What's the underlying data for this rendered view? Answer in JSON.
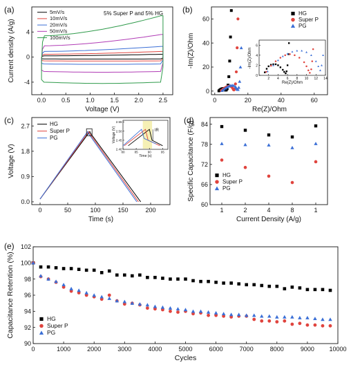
{
  "chart_data": [
    {
      "panel": "(a)",
      "type": "line",
      "title": "5% Super P and 5% HG",
      "xlabel": "Voltage (V)",
      "ylabel": "Current density (A/g)",
      "xlim": [
        -0.2,
        2.7
      ],
      "ylim": [
        -6,
        8
      ],
      "xticks": [
        "0.0",
        "0.5",
        "1.0",
        "1.5",
        "2.0",
        "2.5"
      ],
      "yticks": [
        "-4",
        "0",
        "4"
      ],
      "ytick_values": [
        -4,
        0,
        4
      ],
      "xtick_values": [
        0,
        0.5,
        1.0,
        1.5,
        2.0,
        2.5
      ],
      "legend_position": "top-left",
      "series": [
        {
          "name": "5mV/s",
          "color": "#000000",
          "upper": 0.2,
          "lower": -0.3,
          "upper_end": 0.45
        },
        {
          "name": "10mV/s",
          "color": "#e0443e",
          "upper": 0.45,
          "lower": -0.6,
          "upper_end": 0.9
        },
        {
          "name": "20mV/s",
          "color": "#3b6fd6",
          "upper": 0.9,
          "lower": -1.1,
          "upper_end": 1.7
        },
        {
          "name": "50mV/s",
          "color": "#b03bb5",
          "upper": 1.8,
          "lower": -2.3,
          "upper_end": 3.6
        },
        {
          "name": "100mV/s",
          "color": "#2e9a4a",
          "upper": 3.4,
          "lower": -4.0,
          "upper_end": 6.6
        }
      ]
    },
    {
      "panel": "(b)",
      "type": "scatter",
      "xlabel": "Re(Z)/Ohm",
      "ylabel": "-Im(Z)/Ohm",
      "xlim": [
        -2,
        68
      ],
      "ylim": [
        -3,
        70
      ],
      "xticks": [
        "0",
        "20",
        "40",
        "60"
      ],
      "xtick_values": [
        0,
        20,
        40,
        60
      ],
      "yticks": [
        "0",
        "20",
        "40",
        "60"
      ],
      "ytick_values": [
        0,
        20,
        40,
        60
      ],
      "legend_position": "top-right",
      "series": [
        {
          "name": "HG",
          "color": "#000000",
          "marker": "square",
          "x": [
            2.5,
            3,
            3.5,
            4,
            4.5,
            5,
            5.5,
            6,
            6.3,
            6.6,
            7,
            7.5,
            8,
            8.5,
            9,
            9.5,
            10
          ],
          "y": [
            0.2,
            0.8,
            1.3,
            1.7,
            2.0,
            2.1,
            2.0,
            1.6,
            1.1,
            0.8,
            1.0,
            2.0,
            5.0,
            12,
            25,
            45,
            67
          ]
        },
        {
          "name": "Super P",
          "color": "#e0443e",
          "marker": "circle",
          "x": [
            4,
            5,
            6,
            7,
            8,
            9,
            10,
            10.5,
            11,
            11.3,
            11.6,
            12,
            12.5,
            13,
            13.5,
            14
          ],
          "y": [
            0.5,
            1.6,
            2.6,
            3.4,
            4.0,
            4.2,
            3.8,
            3.0,
            2.0,
            1.2,
            1.0,
            1.8,
            6,
            16,
            36,
            60
          ]
        },
        {
          "name": "PG",
          "color": "#3b6fd6",
          "marker": "triangle",
          "x": [
            4.5,
            5.5,
            6.5,
            7.5,
            8.5,
            9.5,
            10.5,
            11.5,
            12.5,
            13,
            13.5,
            14,
            14.5,
            15,
            15.5,
            16
          ],
          "y": [
            0.5,
            1.5,
            2.5,
            3.4,
            4.1,
            4.6,
            4.8,
            4.6,
            3.6,
            2.5,
            1.5,
            1.3,
            3.0,
            8,
            20,
            36
          ]
        }
      ],
      "inset": {
        "xlabel": "Re(Z)/Ohm",
        "ylabel": "-Im(Z)/Ohm",
        "xlim": [
          0,
          14
        ],
        "ylim": [
          0,
          7
        ],
        "xticks": [
          "2",
          "4",
          "6",
          "8",
          "10",
          "12",
          "14"
        ],
        "xtick_values": [
          2,
          4,
          6,
          8,
          10,
          12,
          14
        ],
        "yticks": [
          "0",
          "2",
          "4",
          "6"
        ],
        "ytick_values": [
          0,
          2,
          4,
          6
        ],
        "series": [
          {
            "name": "HG",
            "color": "#000000",
            "marker": "square",
            "x": [
              1.2,
              1.6,
              2.0,
              2.5,
              3.0,
              3.5,
              4.0,
              4.5,
              5.0,
              5.3,
              5.6,
              5.8,
              6.0,
              6.2,
              6.3
            ],
            "y": [
              0.6,
              1.3,
              1.8,
              2.1,
              2.2,
              2.2,
              2.0,
              1.6,
              1.1,
              0.7,
              0.4,
              0.8,
              2.0,
              4.2,
              6.4
            ]
          },
          {
            "name": "Super P",
            "color": "#e0443e",
            "marker": "circle",
            "x": [
              1.5,
              2.5,
              3.5,
              4.5,
              5.5,
              6.5,
              7.5,
              8.5,
              9.5,
              10.0,
              10.4,
              10.7,
              11.0,
              11.2,
              11.4
            ],
            "y": [
              0.7,
              1.9,
              2.8,
              3.5,
              4.0,
              4.2,
              4.0,
              3.5,
              2.6,
              1.8,
              1.0,
              0.5,
              1.2,
              2.8,
              5.2
            ]
          },
          {
            "name": "PG",
            "color": "#3b6fd6",
            "marker": "triangle",
            "x": [
              1.8,
              3,
              4,
              5,
              6,
              7,
              8,
              9,
              10,
              11,
              12,
              12.5,
              12.9,
              13.2,
              13.5
            ],
            "y": [
              0.8,
              2.0,
              3.0,
              3.8,
              4.3,
              4.7,
              4.9,
              4.9,
              4.6,
              4.0,
              2.8,
              1.8,
              1.0,
              2.0,
              4.0
            ]
          }
        ]
      }
    },
    {
      "panel": "(c)",
      "type": "line",
      "xlabel": "Time (s)",
      "ylabel": "Voltage (V)",
      "xlim": [
        -15,
        235
      ],
      "ylim": [
        -0.1,
        3.0
      ],
      "xticks": [
        "0",
        "50",
        "100",
        "150",
        "200"
      ],
      "xtick_values": [
        0,
        50,
        100,
        150,
        200
      ],
      "yticks": [
        "0.0",
        "0.9",
        "1.8",
        "2.7"
      ],
      "ytick_values": [
        0,
        0.9,
        1.8,
        2.7
      ],
      "legend_position": "top-left",
      "series": [
        {
          "name": "HG",
          "color": "#000000",
          "x": [
            0,
            90,
            92,
            182
          ],
          "y": [
            0.1,
            2.5,
            2.42,
            0
          ]
        },
        {
          "name": "Super P",
          "color": "#e0443e",
          "x": [
            0,
            88,
            90,
            178
          ],
          "y": [
            0.1,
            2.5,
            2.42,
            0
          ]
        },
        {
          "name": "PG",
          "color": "#3b6fd6",
          "x": [
            0,
            86,
            88,
            175
          ],
          "y": [
            0.1,
            2.5,
            2.42,
            0
          ]
        }
      ],
      "inset": {
        "xlabel": "Time (s)",
        "ylabel": "Voltage (V)",
        "xlim": [
          80,
          97
        ],
        "ylim": [
          2.4,
          2.56
        ],
        "xticks": [
          "80",
          "85",
          "90",
          "95"
        ],
        "xtick_values": [
          80,
          85,
          90,
          95
        ],
        "yticks": [
          "2.40",
          "2.45",
          "2.50",
          "2.55"
        ],
        "ytick_values": [
          2.4,
          2.45,
          2.5,
          2.55
        ],
        "annotation": "IR",
        "series": [
          {
            "name": "HG",
            "color": "#000000",
            "x": [
              82,
              90,
              91,
              95
            ],
            "y": [
              2.42,
              2.51,
              2.45,
              2.42
            ]
          },
          {
            "name": "Super P",
            "color": "#e0443e",
            "x": [
              80.5,
              88.5,
              89.5,
              94
            ],
            "y": [
              2.42,
              2.51,
              2.45,
              2.42
            ]
          },
          {
            "name": "PG",
            "color": "#3b6fd6",
            "x": [
              80,
              87,
              88,
              92.5
            ],
            "y": [
              2.42,
              2.51,
              2.46,
              2.43
            ]
          }
        ]
      }
    },
    {
      "panel": "(d)",
      "type": "scatter",
      "xlabel": "Current Density (A/g)",
      "ylabel": "Specific Capacitance (F/g)",
      "categories": [
        "1",
        "2",
        "4",
        "8",
        "1"
      ],
      "ylim": [
        60,
        86
      ],
      "yticks": [
        "60",
        "66",
        "72",
        "78",
        "84"
      ],
      "ytick_values": [
        60,
        66,
        72,
        78,
        84
      ],
      "legend_position": "bottom-left",
      "series": [
        {
          "name": "HG",
          "color": "#000000",
          "marker": "square",
          "values": [
            83.3,
            82.2,
            80.8,
            80.2,
            83.5
          ]
        },
        {
          "name": "Super P",
          "color": "#e0443e",
          "marker": "circle",
          "values": [
            73.3,
            71.1,
            68.5,
            66.6,
            72.8
          ]
        },
        {
          "name": "PG",
          "color": "#3b6fd6",
          "marker": "triangle",
          "values": [
            78.2,
            77.9,
            77.8,
            77.0,
            78.2
          ]
        }
      ]
    },
    {
      "panel": "(e)",
      "type": "scatter",
      "xlabel": "Cycles",
      "ylabel": "Capacitance Retention (%)",
      "xlim": [
        0,
        10000
      ],
      "ylim": [
        90,
        102
      ],
      "xticks": [
        "0",
        "1000",
        "2000",
        "3000",
        "4000",
        "5000",
        "6000",
        "7000",
        "8000",
        "9000",
        "10000"
      ],
      "xtick_values": [
        0,
        1000,
        2000,
        3000,
        4000,
        5000,
        6000,
        7000,
        8000,
        9000,
        10000
      ],
      "yticks": [
        "90",
        "92",
        "94",
        "96",
        "98",
        "100",
        "102"
      ],
      "ytick_values": [
        90,
        92,
        94,
        96,
        98,
        100,
        102
      ],
      "legend_position": "bottom-left",
      "x": [
        0,
        250,
        500,
        750,
        1000,
        1250,
        1500,
        1750,
        2000,
        2250,
        2500,
        2750,
        3000,
        3250,
        3500,
        3750,
        4000,
        4250,
        4500,
        4750,
        5000,
        5250,
        5500,
        5750,
        6000,
        6250,
        6500,
        6750,
        7000,
        7250,
        7500,
        7750,
        8000,
        8250,
        8500,
        8750,
        9000,
        9250,
        9500,
        9750
      ],
      "series": [
        {
          "name": "HG",
          "color": "#000000",
          "marker": "square",
          "values": [
            100,
            99.5,
            99.5,
            99.4,
            99.3,
            99.3,
            99.2,
            99.1,
            99.1,
            98.8,
            99.0,
            98.5,
            98.5,
            98.4,
            98.5,
            98.2,
            98.2,
            98.1,
            98.0,
            98.0,
            98.0,
            97.8,
            97.7,
            97.7,
            97.6,
            97.5,
            97.5,
            97.4,
            97.3,
            97.3,
            97.2,
            97.1,
            97.1,
            96.8,
            97.0,
            96.9,
            96.7,
            96.7,
            96.7,
            96.6
          ]
        },
        {
          "name": "Super P",
          "color": "#e0443e",
          "marker": "circle",
          "values": [
            100,
            98.3,
            98.0,
            97.6,
            97.0,
            96.5,
            96.3,
            96.0,
            95.8,
            95.5,
            96.0,
            95.3,
            94.9,
            95.0,
            94.8,
            94.4,
            94.3,
            94.2,
            94.0,
            93.9,
            94.0,
            93.7,
            93.8,
            93.5,
            93.5,
            93.4,
            93.3,
            93.4,
            93.4,
            93.0,
            92.8,
            92.8,
            92.7,
            92.8,
            92.4,
            92.5,
            92.3,
            92.3,
            92.2,
            92.2
          ]
        },
        {
          "name": "PG",
          "color": "#3b6fd6",
          "marker": "triangle",
          "values": [
            100,
            98.4,
            98.0,
            97.7,
            97.3,
            96.8,
            96.6,
            96.3,
            96.0,
            95.8,
            95.6,
            95.3,
            95.2,
            95.0,
            94.9,
            94.8,
            94.6,
            94.5,
            94.4,
            94.3,
            94.2,
            94.0,
            94.0,
            93.9,
            93.8,
            93.7,
            93.6,
            93.6,
            93.5,
            93.5,
            93.4,
            93.4,
            93.3,
            93.3,
            93.3,
            93.2,
            93.2,
            93.1,
            93.0,
            93.0
          ]
        }
      ]
    }
  ]
}
